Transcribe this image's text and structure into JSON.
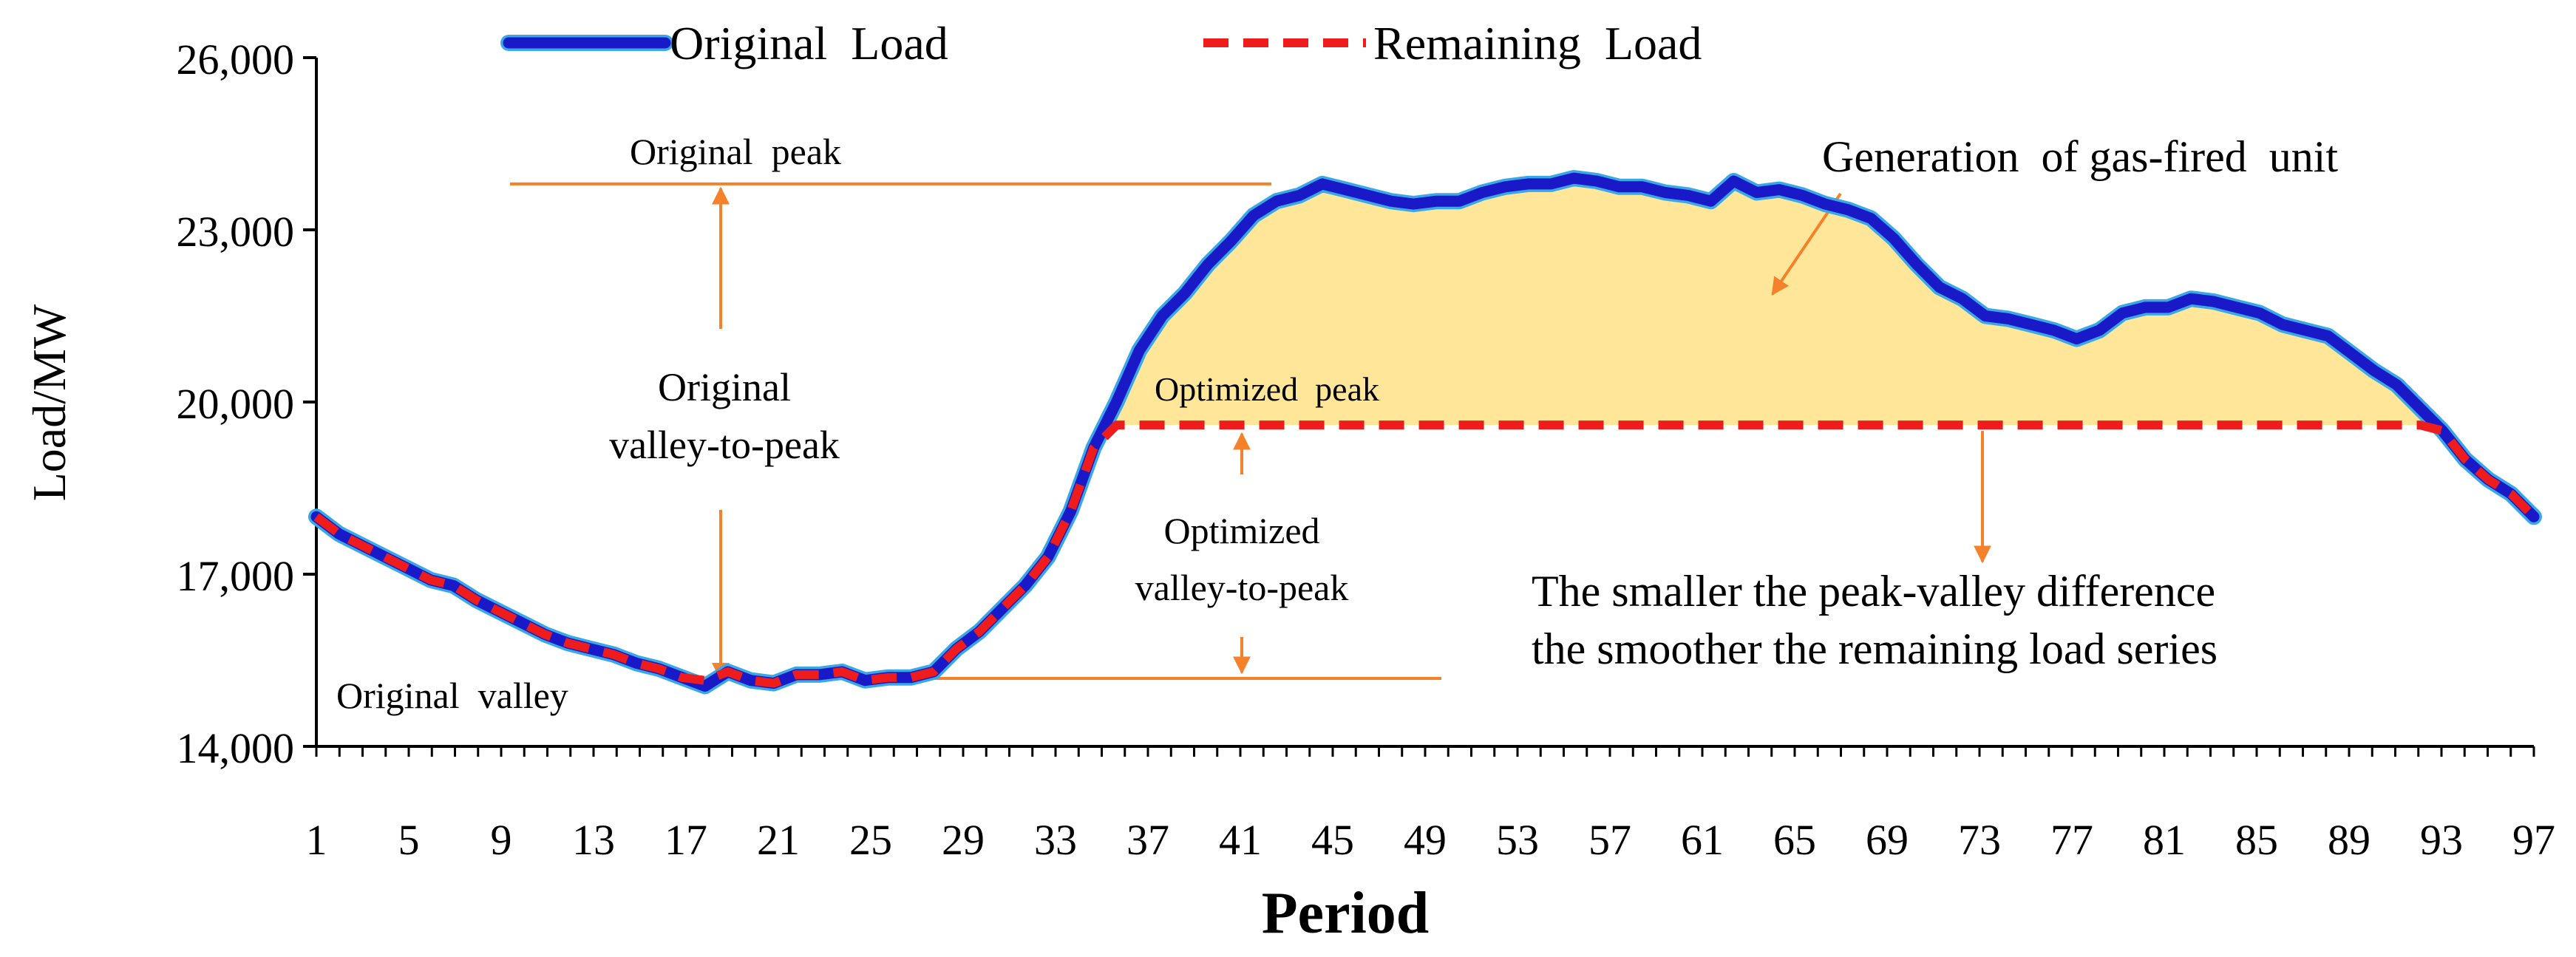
{
  "chart_data": {
    "type": "line",
    "xlabel": "Period",
    "ylabel": "Load/MW",
    "ylim": [
      14000,
      26000
    ],
    "xlim": [
      1,
      97
    ],
    "y_ticks": [
      14000,
      17000,
      20000,
      23000,
      26000
    ],
    "y_tick_labels": [
      "14,000",
      "17,000",
      "20,000",
      "23,000",
      "26,000"
    ],
    "x_ticks": [
      1,
      5,
      9,
      13,
      17,
      21,
      25,
      29,
      33,
      37,
      41,
      45,
      49,
      53,
      57,
      61,
      65,
      69,
      73,
      77,
      81,
      85,
      89,
      93,
      97
    ],
    "x_tick_labels": [
      "1",
      "5",
      "9",
      "13",
      "17",
      "21",
      "25",
      "29",
      "33",
      "37",
      "41",
      "45",
      "49",
      "53",
      "57",
      "61",
      "65",
      "69",
      "73",
      "77",
      "81",
      "85",
      "89",
      "93",
      "97"
    ],
    "series": [
      {
        "name": "Original Load",
        "color": "#1919c8",
        "style": "solid",
        "values": [
          18000,
          17700,
          17500,
          17300,
          17100,
          16900,
          16800,
          16550,
          16350,
          16150,
          15950,
          15800,
          15700,
          15600,
          15450,
          15350,
          15200,
          15050,
          15300,
          15150,
          15100,
          15250,
          15250,
          15300,
          15150,
          15200,
          15200,
          15300,
          15700,
          16000,
          16400,
          16800,
          17300,
          18100,
          19200,
          20000,
          20900,
          21500,
          21900,
          22400,
          22800,
          23250,
          23500,
          23600,
          23800,
          23700,
          23600,
          23500,
          23450,
          23500,
          23500,
          23650,
          23750,
          23800,
          23800,
          23900,
          23850,
          23750,
          23750,
          23650,
          23600,
          23500,
          23850,
          23650,
          23700,
          23600,
          23450,
          23350,
          23200,
          22850,
          22400,
          22000,
          21800,
          21500,
          21450,
          21350,
          21250,
          21100,
          21250,
          21550,
          21650,
          21650,
          21800,
          21750,
          21650,
          21550,
          21350,
          21250,
          21150,
          20850,
          20550,
          20300,
          19900,
          19500,
          19000,
          18650,
          18400,
          18000
        ]
      },
      {
        "name": "Remaining Load",
        "color": "#ee1c1c",
        "style": "dashed",
        "values": [
          18000,
          17700,
          17500,
          17300,
          17100,
          16900,
          16800,
          16550,
          16350,
          16150,
          15950,
          15800,
          15700,
          15600,
          15450,
          15350,
          15200,
          15150,
          15300,
          15150,
          15100,
          15250,
          15250,
          15300,
          15150,
          15200,
          15200,
          15300,
          15700,
          16000,
          16400,
          16800,
          17300,
          18100,
          19200,
          19600,
          19600,
          19600,
          19600,
          19600,
          19600,
          19600,
          19600,
          19600,
          19600,
          19600,
          19600,
          19600,
          19600,
          19600,
          19600,
          19600,
          19600,
          19600,
          19600,
          19600,
          19600,
          19600,
          19600,
          19600,
          19600,
          19600,
          19600,
          19600,
          19600,
          19600,
          19600,
          19600,
          19600,
          19600,
          19600,
          19600,
          19600,
          19600,
          19600,
          19600,
          19600,
          19600,
          19600,
          19600,
          19600,
          19600,
          19600,
          19600,
          19600,
          19600,
          19600,
          19600,
          19600,
          19600,
          19600,
          19600,
          19600,
          19500,
          19000,
          18650,
          18400,
          18000
        ]
      }
    ],
    "fill": {
      "name": "Generation of gas-fired unit",
      "color": "#ffe699",
      "between": [
        "Original Load",
        "Remaining Load"
      ]
    },
    "reference_levels": {
      "original_peak": 23800,
      "original_valley": 15100,
      "optimized_peak": 19600
    },
    "annotations": {
      "original_peak": "Original  peak",
      "original_valley": "Original  valley",
      "original_range_line1": "Original",
      "original_range_line2": "valley-to-peak",
      "optimized_peak": "Optimized  peak",
      "optimized_range_line1": "Optimized",
      "optimized_range_line2": "valley-to-peak",
      "gas_generation": "Generation  of gas-fired  unit",
      "smoother_line1": "The smaller the peak-valley difference",
      "smoother_line2": "the smoother the remaining load series"
    },
    "legend": {
      "position": "top",
      "entries": [
        {
          "label": "Original  Load",
          "color": "#1919c8",
          "style": "solid"
        },
        {
          "label": "Remaining  Load",
          "color": "#ee1c1c",
          "style": "dashed"
        }
      ]
    },
    "annotation_color": "#f5822a"
  }
}
